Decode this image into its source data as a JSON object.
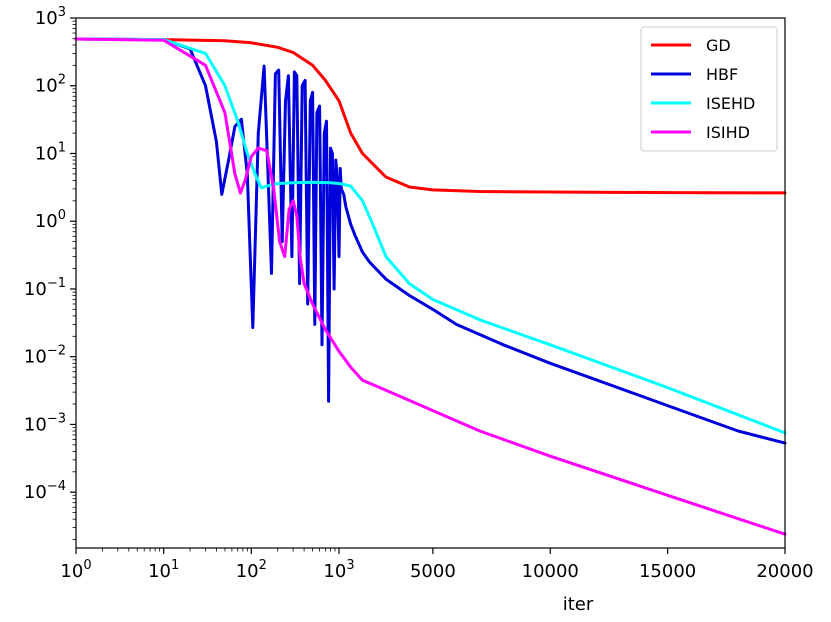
{
  "chart_data": {
    "type": "line",
    "title": "",
    "xlabel": "iter",
    "ylabel": "",
    "x_scale": "log-then-linear",
    "x_transition": 1000,
    "y_scale": "log",
    "xlim": [
      1,
      20000
    ],
    "ylim": [
      1.5e-05,
      1000
    ],
    "grid": false,
    "legend_position": "upper-right",
    "x_ticks": [
      {
        "value": 1,
        "base": "10",
        "exp": "0"
      },
      {
        "value": 10,
        "base": "10",
        "exp": "1"
      },
      {
        "value": 100,
        "base": "10",
        "exp": "2"
      },
      {
        "value": 1000,
        "base": "10",
        "exp": "3"
      },
      {
        "value": 5000,
        "text": "5000"
      },
      {
        "value": 10000,
        "text": "10000"
      },
      {
        "value": 15000,
        "text": "15000"
      },
      {
        "value": 20000,
        "text": "20000"
      }
    ],
    "y_ticks": [
      {
        "value": 1000,
        "base": "10",
        "exp": "3"
      },
      {
        "value": 100,
        "base": "10",
        "exp": "2"
      },
      {
        "value": 10,
        "base": "10",
        "exp": "1"
      },
      {
        "value": 1,
        "base": "10",
        "exp": "0"
      },
      {
        "value": 0.1,
        "base": "10",
        "exp": "−1"
      },
      {
        "value": 0.01,
        "base": "10",
        "exp": "−2"
      },
      {
        "value": 0.001,
        "base": "10",
        "exp": "−3"
      },
      {
        "value": 0.0001,
        "base": "10",
        "exp": "−4"
      }
    ],
    "series": [
      {
        "name": "GD",
        "color": "#ff0000",
        "x": [
          1,
          10,
          50,
          100,
          200,
          300,
          500,
          700,
          1000,
          1500,
          2000,
          3000,
          4000,
          5000,
          7000,
          10000,
          15000,
          20000
        ],
        "y": [
          490,
          480,
          460,
          430,
          370,
          310,
          200,
          120,
          60,
          20,
          10,
          4.5,
          3.2,
          2.9,
          2.75,
          2.7,
          2.65,
          2.62
        ]
      },
      {
        "name": "HBF",
        "color": "#0000dd",
        "x": [
          1,
          10,
          20,
          30,
          40,
          46,
          55,
          65,
          77,
          90,
          104,
          120,
          140,
          155,
          170,
          188,
          205,
          225,
          245,
          265,
          290,
          310,
          330,
          355,
          380,
          410,
          440,
          470,
          500,
          530,
          560,
          600,
          640,
          680,
          720,
          760,
          800,
          840,
          880,
          920,
          960,
          1000,
          1050,
          1100,
          1200,
          1300,
          1400,
          1500,
          1700,
          2000,
          2300,
          3000,
          4000,
          5000,
          6000,
          8000,
          10000,
          12000,
          15000,
          18000,
          20000
        ],
        "y": [
          490,
          480,
          350,
          100,
          15,
          2.5,
          8,
          25,
          32,
          5,
          0.027,
          20,
          195,
          5,
          0.17,
          150,
          170,
          0.5,
          60,
          140,
          0.3,
          160,
          140,
          0.12,
          100,
          120,
          0.06,
          60,
          80,
          0.03,
          40,
          50,
          0.015,
          20,
          30,
          0.0022,
          12,
          10,
          0.1,
          8,
          4,
          0.3,
          6,
          3,
          2.5,
          1.6,
          1.2,
          0.9,
          0.6,
          0.35,
          0.25,
          0.14,
          0.08,
          0.05,
          0.03,
          0.015,
          0.008,
          0.0045,
          0.0019,
          0.0008,
          0.00053
        ]
      },
      {
        "name": "ISEHD",
        "color": "#00ffff",
        "x": [
          1,
          10,
          30,
          50,
          70,
          90,
          110,
          130,
          150,
          200,
          300,
          500,
          800,
          1000,
          1200,
          1500,
          2000,
          2500,
          3000,
          4000,
          5000,
          7000,
          10000,
          15000,
          20000
        ],
        "y": [
          490,
          480,
          300,
          100,
          30,
          10,
          5,
          3.1,
          3.3,
          3.6,
          3.7,
          3.75,
          3.7,
          3.6,
          3.5,
          3.3,
          2.0,
          0.8,
          0.3,
          0.12,
          0.07,
          0.035,
          0.015,
          0.0035,
          0.00075
        ]
      },
      {
        "name": "ISIHD",
        "color": "#ff00ff",
        "x": [
          1,
          10,
          30,
          50,
          65,
          75,
          85,
          100,
          120,
          150,
          180,
          210,
          240,
          270,
          300,
          330,
          360,
          400,
          500,
          700,
          1000,
          1500,
          2000,
          3000,
          5000,
          7000,
          10000,
          15000,
          20000
        ],
        "y": [
          490,
          470,
          200,
          40,
          5,
          2.6,
          4,
          9,
          12,
          11,
          3,
          0.5,
          0.3,
          1.5,
          2.0,
          1.2,
          0.3,
          0.12,
          0.06,
          0.025,
          0.012,
          0.007,
          0.0045,
          0.0032,
          0.0016,
          0.0008,
          0.00034,
          9e-05,
          2.4e-05
        ]
      }
    ]
  }
}
